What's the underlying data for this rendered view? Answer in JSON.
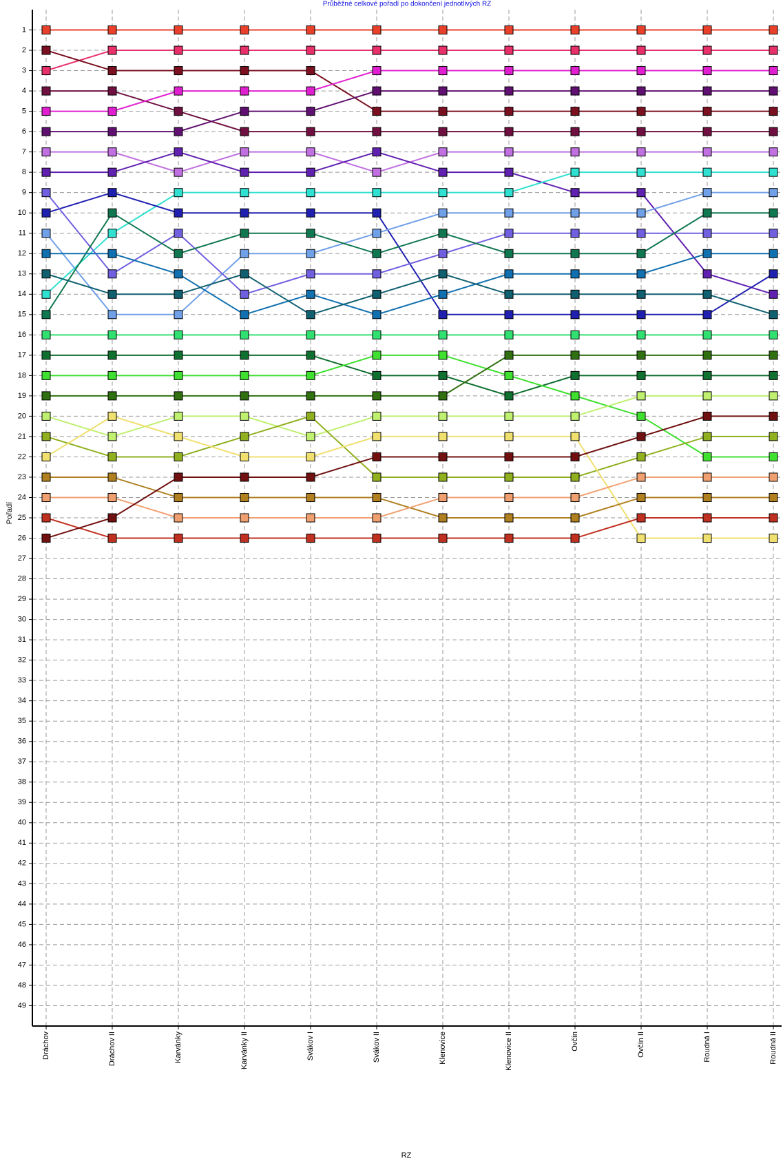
{
  "chart_data": {
    "type": "line",
    "title": "Průběžné celkové pořadí po dokončení jednotlivých RZ",
    "x_label": "RZ",
    "y_label": "Pořadí",
    "categories": [
      "Dráchov",
      "Dráchov II",
      "Karvánky",
      "Karvánky II",
      "Svákov I",
      "Svákov II",
      "Klenovice",
      "Klenovice II",
      "Ovčín",
      "Ovčín II",
      "Roudná I",
      "Roudná II"
    ],
    "ylim": [
      50,
      0
    ],
    "yticks": [
      1,
      2,
      3,
      4,
      5,
      6,
      7,
      8,
      9,
      10,
      11,
      12,
      13,
      14,
      15,
      16,
      17,
      18,
      19,
      20,
      21,
      22,
      23,
      24,
      25,
      26,
      27,
      28,
      29,
      30,
      31,
      32,
      33,
      34,
      35,
      36,
      37,
      38,
      39,
      40,
      41,
      42,
      43,
      44,
      45,
      46,
      47,
      48,
      49
    ],
    "grid": true,
    "series": [
      {
        "color": "#e8402a",
        "values": [
          1,
          1,
          1,
          1,
          1,
          1,
          1,
          1,
          1,
          1,
          1,
          1
        ]
      },
      {
        "color": "#e8306a",
        "values": [
          3,
          2,
          2,
          2,
          2,
          2,
          2,
          2,
          2,
          2,
          2,
          2
        ]
      },
      {
        "color": "#7a1020",
        "values": [
          2,
          3,
          3,
          3,
          3,
          5,
          5,
          5,
          5,
          5,
          5,
          5
        ]
      },
      {
        "color": "#701040",
        "values": [
          4,
          4,
          5,
          6,
          6,
          6,
          6,
          6,
          6,
          6,
          6,
          6
        ]
      },
      {
        "color": "#601070",
        "values": [
          6,
          6,
          6,
          5,
          5,
          4,
          4,
          4,
          4,
          4,
          4,
          4
        ]
      },
      {
        "color": "#e020d0",
        "values": [
          5,
          5,
          4,
          4,
          4,
          3,
          3,
          3,
          3,
          3,
          3,
          3
        ]
      },
      {
        "color": "#c070e0",
        "values": [
          7,
          7,
          8,
          7,
          7,
          8,
          7,
          7,
          7,
          7,
          7,
          7
        ]
      },
      {
        "color": "#6020b0",
        "values": [
          8,
          8,
          7,
          8,
          8,
          7,
          8,
          8,
          9,
          9,
          13,
          14
        ]
      },
      {
        "color": "#30e0d0",
        "values": [
          14,
          11,
          9,
          9,
          9,
          9,
          9,
          9,
          8,
          8,
          8,
          8
        ]
      },
      {
        "color": "#2020b0",
        "values": [
          10,
          9,
          10,
          10,
          10,
          10,
          15,
          15,
          15,
          15,
          15,
          13
        ]
      },
      {
        "color": "#70a0e8",
        "values": [
          11,
          15,
          15,
          12,
          12,
          11,
          10,
          10,
          10,
          10,
          9,
          9
        ]
      },
      {
        "color": "#7060e0",
        "values": [
          9,
          13,
          11,
          14,
          13,
          13,
          12,
          11,
          11,
          11,
          11,
          11
        ]
      },
      {
        "color": "#107850",
        "values": [
          15,
          10,
          12,
          11,
          11,
          12,
          11,
          12,
          12,
          12,
          10,
          10
        ]
      },
      {
        "color": "#1070b0",
        "values": [
          12,
          12,
          13,
          15,
          14,
          15,
          14,
          13,
          13,
          13,
          12,
          12
        ]
      },
      {
        "color": "#106070",
        "values": [
          13,
          14,
          14,
          13,
          15,
          14,
          13,
          14,
          14,
          14,
          14,
          15
        ]
      },
      {
        "color": "#30e070",
        "values": [
          16,
          16,
          16,
          16,
          16,
          16,
          16,
          16,
          16,
          16,
          16,
          16
        ]
      },
      {
        "color": "#107030",
        "values": [
          17,
          17,
          17,
          17,
          17,
          18,
          18,
          19,
          18,
          18,
          18,
          18
        ]
      },
      {
        "color": "#40e030",
        "values": [
          18,
          18,
          18,
          18,
          18,
          17,
          17,
          18,
          19,
          20,
          22,
          22
        ]
      },
      {
        "color": "#307010",
        "values": [
          19,
          19,
          19,
          19,
          19,
          19,
          19,
          17,
          17,
          17,
          17,
          17
        ]
      },
      {
        "color": "#c0f070",
        "values": [
          20,
          21,
          20,
          20,
          21,
          20,
          20,
          20,
          20,
          19,
          19,
          19
        ]
      },
      {
        "color": "#90b020",
        "values": [
          21,
          22,
          22,
          21,
          20,
          23,
          23,
          23,
          23,
          22,
          21,
          21
        ]
      },
      {
        "color": "#f0e070",
        "values": [
          22,
          20,
          21,
          22,
          22,
          21,
          21,
          21,
          21,
          26,
          26,
          26
        ]
      },
      {
        "color": "#b08020",
        "values": [
          23,
          23,
          24,
          24,
          24,
          24,
          25,
          25,
          25,
          24,
          24,
          24
        ]
      },
      {
        "color": "#f0a070",
        "values": [
          24,
          24,
          25,
          25,
          25,
          25,
          24,
          24,
          24,
          23,
          23,
          23
        ]
      },
      {
        "color": "#c03020",
        "values": [
          25,
          26,
          26,
          26,
          26,
          26,
          26,
          26,
          26,
          25,
          25,
          25
        ]
      },
      {
        "color": "#701010",
        "values": [
          26,
          25,
          23,
          23,
          23,
          22,
          22,
          22,
          22,
          21,
          20,
          20
        ]
      }
    ]
  }
}
